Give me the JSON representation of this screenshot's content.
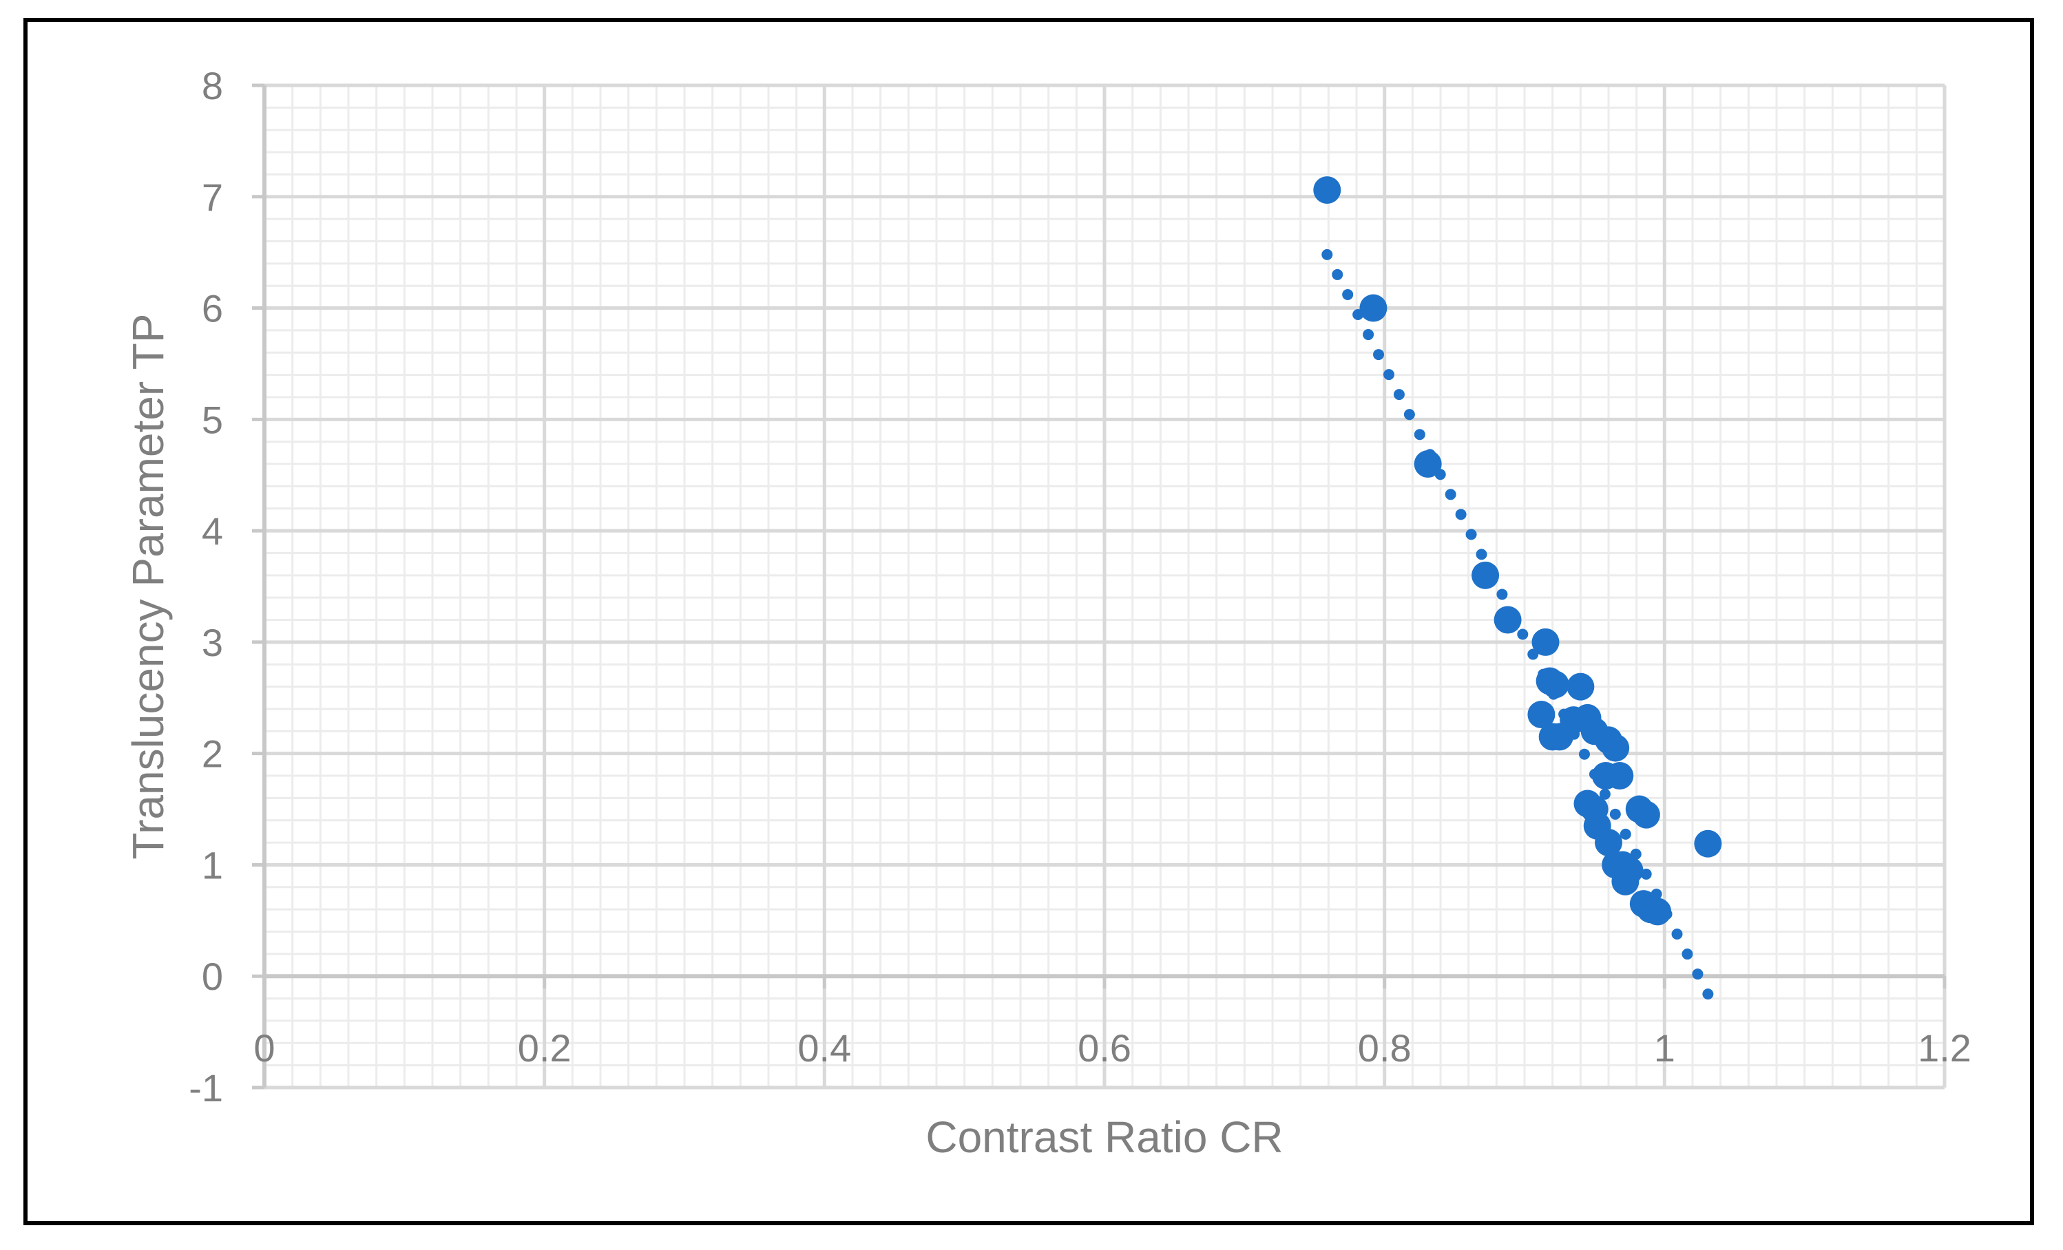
{
  "chart_data": {
    "type": "scatter",
    "title": "",
    "xlabel": "Contrast Ratio CR",
    "ylabel": "Translucency Parameter TP",
    "xlim": [
      0,
      1.2
    ],
    "ylim": [
      -1,
      8
    ],
    "x_ticks": [
      "0",
      "0.2",
      "0.4",
      "0.6",
      "0.8",
      "1",
      "1.2"
    ],
    "y_ticks": [
      "-1",
      "0",
      "1",
      "2",
      "3",
      "4",
      "5",
      "6",
      "7",
      "8"
    ],
    "grid": true,
    "legend": "none",
    "series": [
      {
        "color": "#1f72c9",
        "points": [
          [
            0.759,
            7.06
          ],
          [
            0.792,
            6.0
          ],
          [
            0.831,
            4.6
          ],
          [
            0.872,
            3.6
          ],
          [
            0.888,
            3.2
          ],
          [
            0.915,
            3.0
          ],
          [
            0.918,
            2.65
          ],
          [
            0.922,
            2.62
          ],
          [
            0.912,
            2.35
          ],
          [
            0.92,
            2.15
          ],
          [
            0.925,
            2.15
          ],
          [
            0.94,
            2.6
          ],
          [
            0.935,
            2.3
          ],
          [
            0.945,
            2.32
          ],
          [
            0.95,
            2.2
          ],
          [
            0.96,
            2.12
          ],
          [
            0.965,
            2.05
          ],
          [
            0.958,
            1.8
          ],
          [
            0.968,
            1.8
          ],
          [
            0.945,
            1.55
          ],
          [
            0.95,
            1.5
          ],
          [
            0.952,
            1.35
          ],
          [
            0.96,
            1.2
          ],
          [
            0.965,
            1.0
          ],
          [
            0.97,
            1.0
          ],
          [
            0.975,
            0.95
          ],
          [
            0.972,
            0.85
          ],
          [
            0.982,
            1.5
          ],
          [
            0.987,
            1.45
          ],
          [
            0.985,
            0.65
          ],
          [
            0.99,
            0.6
          ],
          [
            0.995,
            0.58
          ],
          [
            1.031,
            1.19
          ]
        ]
      }
    ],
    "trendline": {
      "style": "dotted",
      "color": "#1f72c9",
      "start": [
        0.759,
        6.48
      ],
      "end": [
        1.031,
        -0.16
      ]
    }
  }
}
